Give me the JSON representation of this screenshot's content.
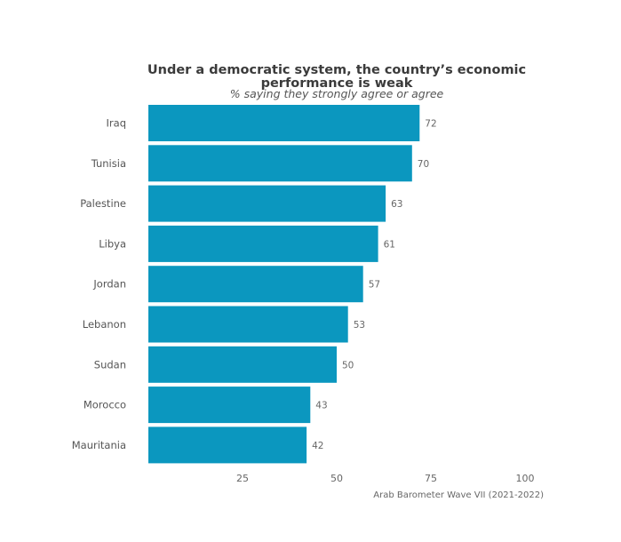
{
  "chart_data": {
    "type": "bar",
    "orientation": "horizontal",
    "title_lines": [
      "Under a democratic system, the country’s economic",
      "performance is weak"
    ],
    "subtitle": "% saying they strongly agree or agree",
    "categories": [
      "Iraq",
      "Tunisia",
      "Palestine",
      "Libya",
      "Jordan",
      "Lebanon",
      "Sudan",
      "Morocco",
      "Mauritania"
    ],
    "values": [
      72,
      70,
      63,
      61,
      57,
      53,
      50,
      43,
      42
    ],
    "x_ticks": [
      25,
      50,
      75,
      100
    ],
    "xlim": [
      0,
      100
    ],
    "grid": false,
    "legend": "none",
    "bar_color": "#0b97bf",
    "source": "Arab Barometer Wave VII (2021-2022)"
  }
}
